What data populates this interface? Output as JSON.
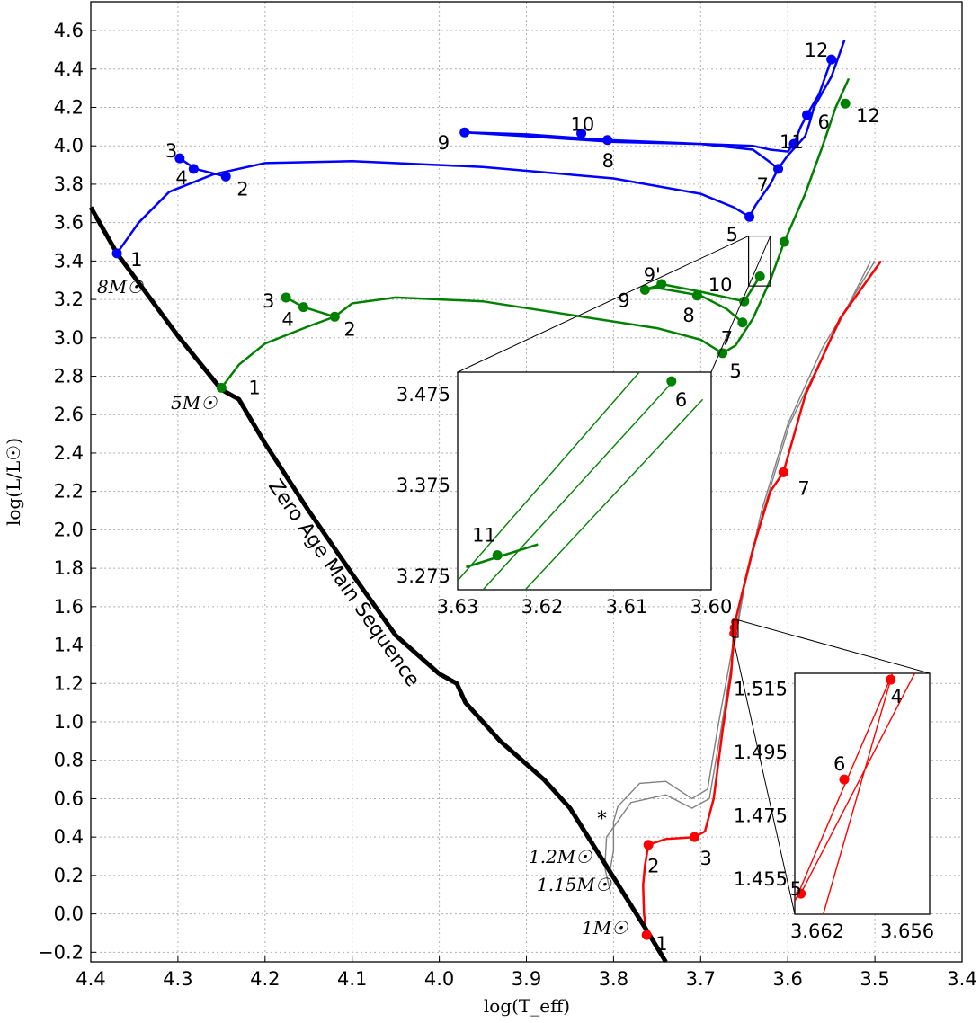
{
  "chart_data": {
    "type": "line",
    "title": "",
    "xlabel": "log(T_eff)",
    "ylabel": "log(L/L☉)",
    "xlim": [
      4.4,
      3.4
    ],
    "ylim": [
      -0.25,
      4.75
    ],
    "x_inverted": true,
    "grid": true,
    "x_ticks": [
      "4.4",
      "4.3",
      "4.2",
      "4.1",
      "4.0",
      "3.9",
      "3.8",
      "3.7",
      "3.6",
      "3.5",
      "3.4"
    ],
    "y_ticks": [
      "−0.2",
      "0.0",
      "0.2",
      "0.4",
      "0.6",
      "0.8",
      "1.0",
      "1.2",
      "1.4",
      "1.6",
      "1.8",
      "2.0",
      "2.2",
      "2.4",
      "2.6",
      "2.8",
      "3.0",
      "3.2",
      "3.4",
      "3.6",
      "3.8",
      "4.0",
      "4.2",
      "4.4",
      "4.6"
    ],
    "zams": {
      "label": "Zero Age Main Sequence",
      "color": "#000000",
      "x": [
        4.4,
        4.37,
        4.3,
        4.25,
        4.23,
        4.2,
        4.15,
        4.1,
        4.05,
        4.0,
        3.98,
        3.97,
        3.93,
        3.88,
        3.85,
        3.8,
        3.76,
        3.74
      ],
      "y": [
        3.68,
        3.44,
        3.01,
        2.73,
        2.68,
        2.45,
        2.1,
        1.77,
        1.45,
        1.25,
        1.2,
        1.1,
        0.9,
        0.7,
        0.55,
        0.19,
        -0.1,
        -0.25
      ]
    },
    "tracks": [
      {
        "mass_label": "8M☉",
        "color": "#0000ff",
        "path": [
          [
            4.37,
            3.44
          ],
          [
            4.345,
            3.6
          ],
          [
            4.31,
            3.76
          ],
          [
            4.26,
            3.85
          ],
          [
            4.2,
            3.91
          ],
          [
            4.1,
            3.92
          ],
          [
            3.95,
            3.89
          ],
          [
            3.8,
            3.83
          ],
          [
            3.7,
            3.75
          ],
          [
            3.662,
            3.68
          ],
          [
            3.644,
            3.63
          ],
          [
            3.637,
            3.69
          ],
          [
            3.62,
            3.8
          ],
          [
            3.611,
            3.88
          ],
          [
            3.6,
            3.95
          ],
          [
            3.58,
            4.05
          ],
          [
            3.575,
            4.12
          ],
          [
            3.57,
            4.2
          ],
          [
            3.55,
            4.36
          ],
          [
            3.535,
            4.55
          ]
        ],
        "loop": [
          [
            3.611,
            3.88
          ],
          [
            3.622,
            3.92
          ],
          [
            3.64,
            3.98
          ],
          [
            3.7,
            4.01
          ],
          [
            3.8,
            4.02
          ],
          [
            3.9,
            4.05
          ],
          [
            3.971,
            4.07
          ],
          [
            3.9,
            4.06
          ],
          [
            3.837,
            4.04
          ],
          [
            3.807,
            4.03
          ],
          [
            3.7,
            4.01
          ],
          [
            3.64,
            4.0
          ],
          [
            3.62,
            3.98
          ],
          [
            3.6,
            3.97
          ],
          [
            3.593,
            4.01
          ],
          [
            3.585,
            4.1
          ],
          [
            3.578,
            4.16
          ],
          [
            3.564,
            4.27
          ],
          [
            3.55,
            4.45
          ]
        ],
        "blueloop_extra": [
          [
            4.298,
            3.935
          ],
          [
            4.28,
            3.88
          ],
          [
            4.245,
            3.84
          ]
        ],
        "points": [
          {
            "label": "1",
            "x": 4.37,
            "y": 3.44
          },
          {
            "label": "2",
            "x": 4.245,
            "y": 3.84
          },
          {
            "label": "3",
            "x": 4.298,
            "y": 3.935
          },
          {
            "label": "4",
            "x": 4.282,
            "y": 3.88
          },
          {
            "label": "5",
            "x": 3.644,
            "y": 3.63
          },
          {
            "label": "6",
            "x": 3.578,
            "y": 4.16
          },
          {
            "label": "7",
            "x": 3.611,
            "y": 3.88
          },
          {
            "label": "8",
            "x": 3.807,
            "y": 4.03
          },
          {
            "label": "9",
            "x": 3.971,
            "y": 4.07
          },
          {
            "label": "10",
            "x": 3.837,
            "y": 4.065
          },
          {
            "label": "11",
            "x": 3.593,
            "y": 4.01
          },
          {
            "label": "12",
            "x": 3.55,
            "y": 4.45
          }
        ]
      },
      {
        "mass_label": "5M☉",
        "color": "#008000",
        "path": [
          [
            4.25,
            2.74
          ],
          [
            4.23,
            2.86
          ],
          [
            4.2,
            2.97
          ],
          [
            4.15,
            3.06
          ],
          [
            4.12,
            3.11
          ],
          [
            4.1,
            3.18
          ],
          [
            4.05,
            3.21
          ],
          [
            3.95,
            3.19
          ],
          [
            3.85,
            3.12
          ],
          [
            3.75,
            3.05
          ],
          [
            3.7,
            2.99
          ],
          [
            3.675,
            2.92
          ],
          [
            3.66,
            2.96
          ],
          [
            3.64,
            3.1
          ],
          [
            3.62,
            3.3
          ],
          [
            3.604,
            3.5
          ],
          [
            3.58,
            3.75
          ],
          [
            3.56,
            4.0
          ],
          [
            3.545,
            4.2
          ],
          [
            3.53,
            4.35
          ]
        ],
        "loop": [
          [
            3.652,
            3.08
          ],
          [
            3.67,
            3.15
          ],
          [
            3.7,
            3.22
          ],
          [
            3.75,
            3.26
          ],
          [
            3.764,
            3.25
          ],
          [
            3.745,
            3.28
          ],
          [
            3.7,
            3.24
          ],
          [
            3.65,
            3.19
          ],
          [
            3.632,
            3.32
          ]
        ],
        "blueloop_extra": [
          [
            4.176,
            3.21
          ],
          [
            4.156,
            3.16
          ],
          [
            4.12,
            3.11
          ]
        ],
        "points": [
          {
            "label": "1",
            "x": 4.25,
            "y": 2.74
          },
          {
            "label": "2",
            "x": 4.12,
            "y": 3.11
          },
          {
            "label": "3",
            "x": 4.176,
            "y": 3.21
          },
          {
            "label": "4",
            "x": 4.156,
            "y": 3.16
          },
          {
            "label": "5",
            "x": 3.675,
            "y": 2.92
          },
          {
            "label": "6",
            "x": 3.604,
            "y": 3.5
          },
          {
            "label": "7",
            "x": 3.652,
            "y": 3.08
          },
          {
            "label": "8",
            "x": 3.704,
            "y": 3.22
          },
          {
            "label": "9",
            "x": 3.764,
            "y": 3.25
          },
          {
            "label": "9'",
            "x": 3.745,
            "y": 3.28
          },
          {
            "label": "10",
            "x": 3.65,
            "y": 3.19
          },
          {
            "label": "11",
            "x": 3.632,
            "y": 3.32
          },
          {
            "label": "12",
            "x": 3.534,
            "y": 4.22
          }
        ]
      },
      {
        "mass_label": "1M☉",
        "color": "#ff0000",
        "path": [
          [
            3.762,
            -0.11
          ],
          [
            3.765,
            0.0
          ],
          [
            3.766,
            0.15
          ],
          [
            3.764,
            0.25
          ],
          [
            3.76,
            0.36
          ],
          [
            3.74,
            0.39
          ],
          [
            3.707,
            0.4
          ],
          [
            3.695,
            0.43
          ],
          [
            3.685,
            0.6
          ],
          [
            3.675,
            0.95
          ],
          [
            3.665,
            1.25
          ],
          [
            3.662,
            1.45
          ],
          [
            3.66,
            1.53
          ],
          [
            3.64,
            1.9
          ],
          [
            3.62,
            2.2
          ],
          [
            3.605,
            2.3
          ],
          [
            3.58,
            2.7
          ],
          [
            3.54,
            3.1
          ],
          [
            3.493,
            3.4
          ]
        ],
        "points": [
          {
            "label": "1",
            "x": 3.762,
            "y": -0.11
          },
          {
            "label": "2",
            "x": 3.76,
            "y": 0.36
          },
          {
            "label": "3",
            "x": 3.707,
            "y": 0.4
          },
          {
            "label": "7",
            "x": 3.605,
            "y": 2.3
          }
        ]
      }
    ],
    "gray_tracks": [
      {
        "label": "1.2M☉",
        "path": [
          [
            3.805,
            0.2
          ],
          [
            3.8,
            0.33
          ],
          [
            3.8,
            0.48
          ],
          [
            3.795,
            0.56
          ],
          [
            3.77,
            0.68
          ],
          [
            3.74,
            0.69
          ],
          [
            3.71,
            0.6
          ],
          [
            3.692,
            0.65
          ],
          [
            3.68,
            0.98
          ],
          [
            3.665,
            1.35
          ],
          [
            3.65,
            1.7
          ],
          [
            3.63,
            2.1
          ],
          [
            3.6,
            2.55
          ],
          [
            3.56,
            2.95
          ],
          [
            3.5,
            3.4
          ]
        ]
      },
      {
        "label": "1.15M☉",
        "path": [
          [
            3.803,
            0.1
          ],
          [
            3.81,
            0.24
          ],
          [
            3.808,
            0.4
          ],
          [
            3.78,
            0.58
          ],
          [
            3.74,
            0.62
          ],
          [
            3.71,
            0.55
          ],
          [
            3.69,
            0.6
          ],
          [
            3.677,
            0.95
          ],
          [
            3.663,
            1.35
          ],
          [
            3.65,
            1.7
          ],
          [
            3.628,
            2.1
          ],
          [
            3.598,
            2.55
          ],
          [
            3.555,
            2.95
          ],
          [
            3.505,
            3.4
          ]
        ]
      }
    ],
    "annotations": [
      "*"
    ],
    "zams_mass_labels": [
      "8M☉",
      "5M☉",
      "1.2M☉",
      "1.15M☉",
      "1M☉"
    ],
    "insets": [
      {
        "id": "inset-5msun",
        "color": "#008000",
        "xlim": [
          3.63,
          3.6
        ],
        "ylim": [
          3.26,
          3.5
        ],
        "x_ticks": [
          "3.63",
          "3.62",
          "3.61",
          "3.60"
        ],
        "y_ticks": [
          "3.475",
          "3.375",
          "3.275"
        ],
        "points": [
          {
            "label": "6",
            "x": 3.6047,
            "y": 3.49
          },
          {
            "label": "11",
            "x": 3.6253,
            "y": 3.298
          }
        ]
      },
      {
        "id": "inset-1msun",
        "color": "#ff0000",
        "xlim": [
          3.6635,
          3.6545
        ],
        "ylim": [
          1.444,
          1.52
        ],
        "x_ticks": [
          "3.662",
          "3.656"
        ],
        "y_ticks": [
          "1.515",
          "1.495",
          "1.475",
          "1.455"
        ],
        "points": [
          {
            "label": "4",
            "x": 3.6571,
            "y": 1.518
          },
          {
            "label": "5",
            "x": 3.6631,
            "y": 1.4505
          },
          {
            "label": "6",
            "x": 3.6602,
            "y": 1.4865
          }
        ]
      }
    ]
  }
}
